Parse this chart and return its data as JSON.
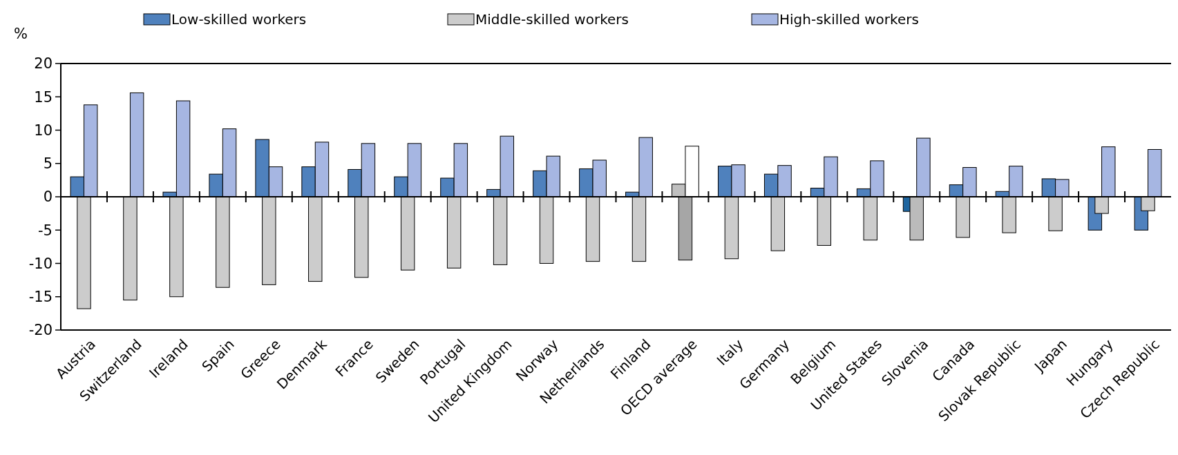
{
  "chart_data": {
    "type": "bar",
    "ylabel": "%",
    "categories": [
      "Austria",
      "Switzerland",
      "Ireland",
      "Spain",
      "Greece",
      "Denmark",
      "France",
      "Sweden",
      "Portugal",
      "United Kingdom",
      "Norway",
      "Netherlands",
      "Finland",
      "OECD average",
      "Italy",
      "Germany",
      "Belgium",
      "United States",
      "Slovenia",
      "Canada",
      "Slovak Republic",
      "Japan",
      "Hungary",
      "Czech Republic"
    ],
    "series": [
      {
        "name": "Low-skilled workers",
        "color": "#4f81bd",
        "colors": [
          "#4f81bd",
          "#4f81bd",
          "#4f81bd",
          "#4f81bd",
          "#4f81bd",
          "#4f81bd",
          "#4f81bd",
          "#4f81bd",
          "#4f81bd",
          "#4f81bd",
          "#4f81bd",
          "#4f81bd",
          "#4f81bd",
          "#bfbfbf",
          "#4f81bd",
          "#4f81bd",
          "#4f81bd",
          "#4f81bd",
          "#1f66a0",
          "#4f81bd",
          "#4f81bd",
          "#4f81bd",
          "#4f81bd",
          "#4f81bd"
        ],
        "values": [
          3.0,
          null,
          0.7,
          3.4,
          8.6,
          4.5,
          4.1,
          3.0,
          2.8,
          1.1,
          3.9,
          4.2,
          0.7,
          1.9,
          4.6,
          3.4,
          1.3,
          1.2,
          -2.2,
          1.8,
          0.8,
          2.7,
          -5.0,
          -5.0
        ]
      },
      {
        "name": "Middle-skilled workers",
        "color": "#cccccc",
        "colors": [
          "#cccccc",
          "#cccccc",
          "#cccccc",
          "#cccccc",
          "#cccccc",
          "#cccccc",
          "#cccccc",
          "#cccccc",
          "#cccccc",
          "#cccccc",
          "#cccccc",
          "#cccccc",
          "#cccccc",
          "#a6a6a6",
          "#cccccc",
          "#cccccc",
          "#cccccc",
          "#cccccc",
          "#bbbbbb",
          "#cccccc",
          "#cccccc",
          "#cccccc",
          "#cccccc",
          "#cccccc"
        ],
        "values": [
          -16.8,
          -15.5,
          -15.0,
          -13.6,
          -13.2,
          -12.7,
          -12.1,
          -11.0,
          -10.7,
          -10.2,
          -10.0,
          -9.7,
          -9.7,
          -9.5,
          -9.3,
          -8.1,
          -7.3,
          -6.5,
          -6.5,
          -6.1,
          -5.4,
          -5.1,
          -2.5,
          -2.1
        ]
      },
      {
        "name": "High-skilled workers",
        "color": "#a6b6e2",
        "colors": [
          "#a6b6e2",
          "#a6b6e2",
          "#a6b6e2",
          "#a6b6e2",
          "#a6b6e2",
          "#a6b6e2",
          "#a6b6e2",
          "#a6b6e2",
          "#a6b6e2",
          "#a6b6e2",
          "#a6b6e2",
          "#a6b6e2",
          "#a6b6e2",
          "#ffffff",
          "#a6b6e2",
          "#a6b6e2",
          "#a6b6e2",
          "#a6b6e2",
          "#a6b6e2",
          "#a6b6e2",
          "#a6b6e2",
          "#a6b6e2",
          "#a6b6e2",
          "#a6b6e2"
        ],
        "values": [
          13.8,
          15.6,
          14.4,
          10.2,
          4.5,
          8.2,
          8.0,
          8.0,
          8.0,
          9.1,
          6.1,
          5.5,
          8.9,
          7.6,
          4.8,
          4.7,
          6.0,
          5.4,
          8.8,
          4.4,
          4.6,
          2.6,
          7.5,
          7.1
        ]
      }
    ],
    "ylim": [
      -20,
      20
    ],
    "yticks": [
      -20,
      -15,
      -10,
      -5,
      0,
      5,
      10,
      15,
      20
    ],
    "legend": "top"
  }
}
